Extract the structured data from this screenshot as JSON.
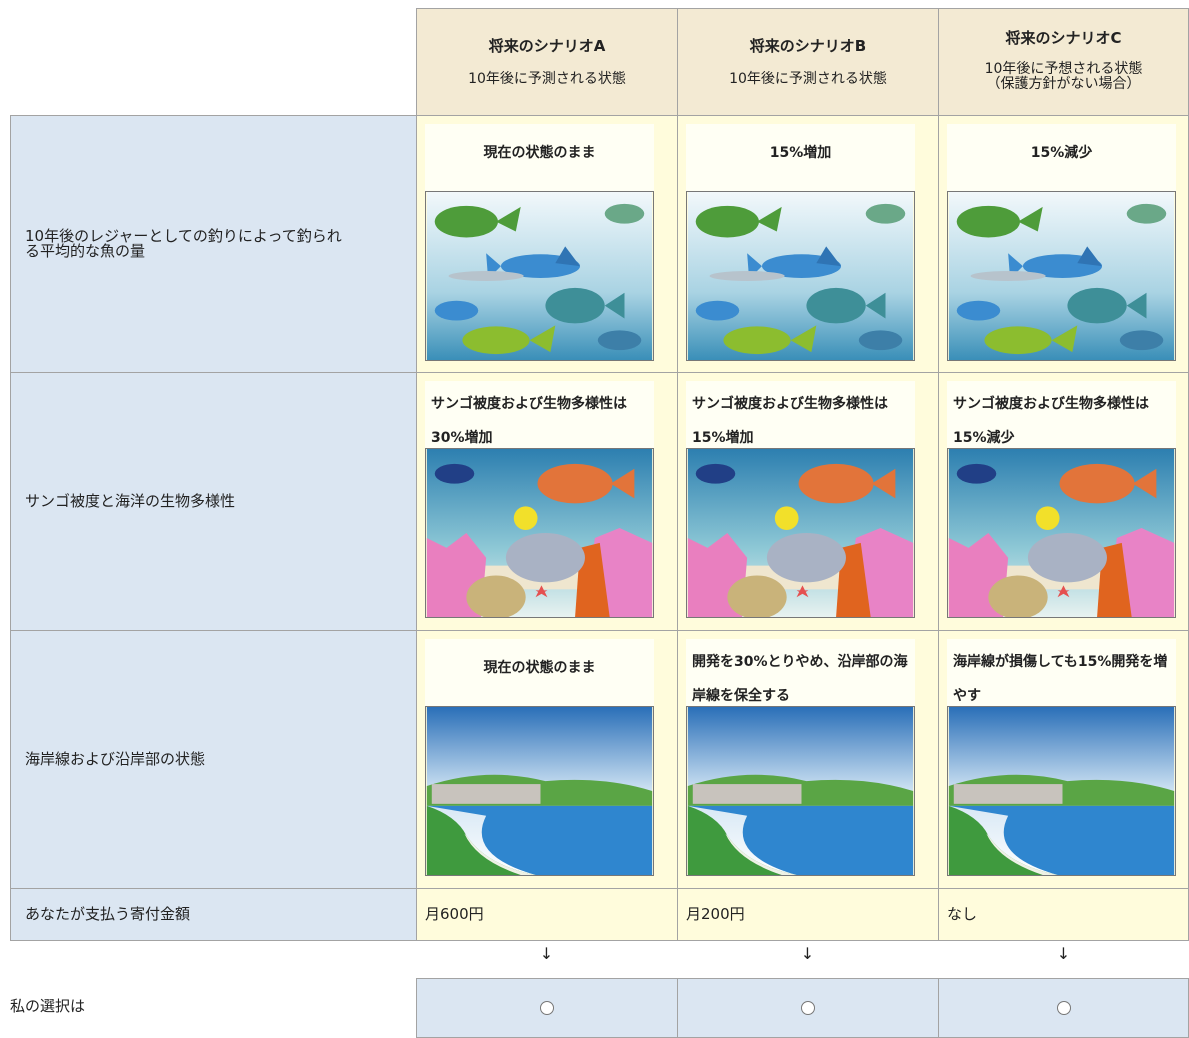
{
  "table": {
    "header": {
      "scenarios": [
        {
          "title": "将来のシナリオA",
          "subtitle": "10年後に予測される状態"
        },
        {
          "title": "将来のシナリオB",
          "subtitle": "10年後に予測される状態"
        },
        {
          "title": "将来のシナリオC",
          "subtitle": "10年後に予想される状態",
          "note": "（保護方針がない場合）"
        }
      ]
    },
    "rows": [
      {
        "label": "10年後のレジャーとしての釣りによって釣られる平均的な魚の量",
        "cells": [
          "現在の状態のまま",
          "15%増加",
          "15%減少"
        ]
      },
      {
        "label": "サンゴ被度と海洋の生物多様性",
        "cells": [
          "サンゴ被度および生物多様性は30%増加",
          "サンゴ被度および生物多様性は15%増加",
          "サンゴ被度および生物多様性は15%減少"
        ]
      },
      {
        "label": "海岸線および沿岸部の状態",
        "cells": [
          "現在の状態のまま",
          "開発を30%とりやめ、沿岸部の海岸線を保全する",
          "海岸線が損傷しても15%開発を増やす"
        ]
      }
    ],
    "donation": {
      "label": "あなたが支払う寄付金額",
      "cells": [
        "月600円",
        "月200円",
        "なし"
      ]
    },
    "arrows": [
      "↓",
      "↓",
      "↓"
    ],
    "choice": {
      "label": "私の選択は"
    }
  }
}
